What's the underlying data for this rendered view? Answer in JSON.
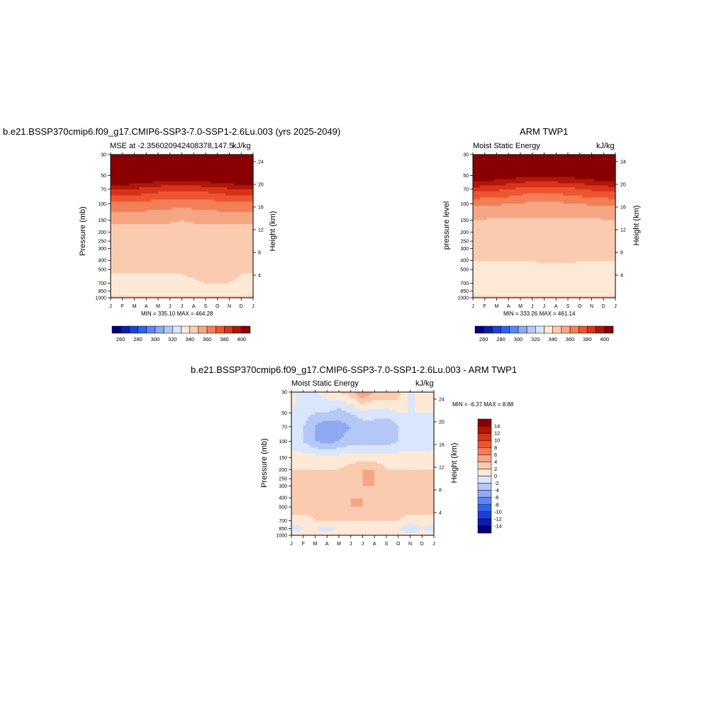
{
  "colors": {
    "mse_colormap": [
      "#00007f",
      "#0a1ea8",
      "#1f3fd6",
      "#2f63e6",
      "#5d86f0",
      "#8fa9f2",
      "#b5c8f5",
      "#d9e6fb",
      "#fde9d6",
      "#fbcbb0",
      "#f7a684",
      "#f37e58",
      "#ed5530",
      "#d8331b",
      "#b11609",
      "#8a0000"
    ],
    "diff_colormap": [
      "#00007f",
      "#0a1ea8",
      "#1f3fd6",
      "#2f63e6",
      "#5d86f0",
      "#8fa9f2",
      "#b5c8f5",
      "#d9e6fb",
      "#fde9d6",
      "#fbcbb0",
      "#f7a684",
      "#f37e58",
      "#ed5530",
      "#d8331b",
      "#b11609",
      "#8a0000"
    ]
  },
  "chart_data": [
    {
      "id": "model",
      "type": "heatmap",
      "title": "b.e21.BSSP370cmip6.f09_g17.CMIP6-SSP3-7.0-SSP1-2.6Lu.003 (yrs 2025-2049)",
      "left_subtitle": "MSE at -2.356020942408378,147.5",
      "right_subtitle": "kJ/kg",
      "ylabel": "Pressure (mb)",
      "ylabel_right": "Height (km)",
      "x_ticks": [
        "J",
        "F",
        "M",
        "A",
        "M",
        "J",
        "J",
        "A",
        "S",
        "O",
        "N",
        "D",
        "J"
      ],
      "y_ticks": [
        "30",
        "50",
        "70",
        "100",
        "150",
        "200",
        "250",
        "300",
        "400",
        "500",
        "700",
        "850",
        "1000"
      ],
      "y_ticks_right": [
        "24",
        "20",
        "16",
        "12",
        "8",
        "4"
      ],
      "stats": "MIN = 335.10 MAX = 464.28",
      "contour_levels": [
        260,
        270,
        280,
        290,
        300,
        310,
        320,
        330,
        340,
        350,
        360,
        370,
        380,
        390,
        400
      ],
      "colorbar_ticks": [
        "260",
        "280",
        "300",
        "320",
        "340",
        "360",
        "380",
        "400"
      ],
      "levels_mb": [
        30,
        50,
        70,
        100,
        150,
        200,
        250,
        300,
        400,
        500,
        700,
        850,
        1000
      ],
      "values": [
        [
          464,
          463,
          462,
          461,
          460,
          459,
          459,
          459,
          460,
          461,
          462,
          463,
          464
        ],
        [
          420,
          419,
          418,
          416,
          414,
          412,
          412,
          413,
          414,
          416,
          418,
          419,
          420
        ],
        [
          392,
          391,
          389,
          387,
          384,
          382,
          382,
          383,
          384,
          386,
          389,
          391,
          392
        ],
        [
          368,
          368,
          367,
          366,
          365,
          364,
          364,
          364,
          365,
          366,
          367,
          368,
          368
        ],
        [
          352,
          352,
          352,
          352,
          351,
          351,
          350,
          351,
          351,
          352,
          352,
          352,
          352
        ],
        [
          347,
          347,
          347,
          347,
          347,
          347,
          347,
          347,
          347,
          347,
          347,
          347,
          347
        ],
        [
          345,
          345,
          345,
          345,
          345,
          345,
          345,
          345,
          345,
          345,
          345,
          345,
          345
        ],
        [
          344,
          344,
          344,
          344,
          344,
          344,
          344,
          344,
          344,
          344,
          344,
          344,
          344
        ],
        [
          342,
          342,
          342,
          342,
          342,
          342,
          342,
          343,
          343,
          343,
          343,
          342,
          342
        ],
        [
          341,
          341,
          341,
          341,
          341,
          341,
          341,
          342,
          342,
          343,
          343,
          341,
          341
        ],
        [
          337,
          337,
          337,
          337,
          337,
          338,
          338,
          339,
          340,
          340,
          340,
          338,
          337
        ],
        [
          336,
          336,
          336,
          337,
          337,
          337,
          336,
          336,
          336,
          336,
          336,
          336,
          336
        ],
        [
          341,
          341,
          341,
          341,
          341,
          341,
          341,
          341,
          341,
          341,
          341,
          341,
          341
        ]
      ]
    },
    {
      "id": "obs",
      "type": "heatmap",
      "title": "ARM TWP1",
      "left_subtitle": "Moist Static Energy",
      "right_subtitle": "kJ/kg",
      "ylabel": "pressure level",
      "ylabel_right": "Height (km)",
      "x_ticks": [
        "J",
        "F",
        "M",
        "A",
        "M",
        "J",
        "J",
        "A",
        "S",
        "O",
        "N",
        "D",
        "J"
      ],
      "y_ticks": [
        "30",
        "50",
        "70",
        "100",
        "150",
        "200",
        "250",
        "300",
        "400",
        "500",
        "700",
        "850",
        "1000"
      ],
      "y_ticks_right": [
        "24",
        "20",
        "16",
        "12",
        "8",
        "4"
      ],
      "stats": "MIN = 333.26 MAX = 461.14",
      "contour_levels": [
        260,
        270,
        280,
        290,
        300,
        310,
        320,
        330,
        340,
        350,
        360,
        370,
        380,
        390,
        400
      ],
      "colorbar_ticks": [
        "260",
        "280",
        "300",
        "320",
        "340",
        "360",
        "380",
        "400"
      ],
      "levels_mb": [
        30,
        50,
        70,
        100,
        150,
        200,
        250,
        300,
        400,
        500,
        700,
        850,
        1000
      ],
      "values": [
        [
          461,
          460,
          459,
          458,
          457,
          456,
          456,
          456,
          457,
          458,
          459,
          460,
          461
        ],
        [
          412,
          411,
          409,
          407,
          404,
          402,
          402,
          403,
          404,
          406,
          409,
          411,
          412
        ],
        [
          385,
          384,
          382,
          380,
          377,
          375,
          375,
          376,
          377,
          379,
          382,
          384,
          385
        ],
        [
          362,
          362,
          361,
          360,
          359,
          358,
          358,
          358,
          359,
          360,
          361,
          362,
          362
        ],
        [
          349,
          349,
          349,
          349,
          349,
          349,
          349,
          349,
          349,
          349,
          349,
          349,
          349
        ],
        [
          346,
          346,
          346,
          346,
          346,
          346,
          346,
          346,
          346,
          346,
          346,
          346,
          346
        ],
        [
          344,
          344,
          344,
          344,
          344,
          344,
          344,
          344,
          344,
          344,
          344,
          344,
          344
        ],
        [
          343,
          343,
          343,
          343,
          343,
          343,
          343,
          343,
          343,
          343,
          343,
          343,
          343
        ],
        [
          340,
          340,
          340,
          340,
          340,
          340,
          341,
          341,
          341,
          340,
          340,
          340,
          340
        ],
        [
          338,
          338,
          338,
          338,
          338,
          338,
          338,
          338,
          338,
          338,
          338,
          338,
          338
        ],
        [
          336,
          336,
          336,
          336,
          336,
          336,
          336,
          336,
          336,
          336,
          336,
          336,
          336
        ],
        [
          337,
          337,
          337,
          336,
          337,
          337,
          337,
          336,
          337,
          337,
          337,
          337,
          337
        ],
        [
          341,
          341,
          341,
          341,
          341,
          341,
          341,
          341,
          341,
          341,
          341,
          341,
          341
        ]
      ]
    },
    {
      "id": "diff",
      "type": "heatmap",
      "title": "b.e21.BSSP370cmip6.f09_g17.CMIP6-SSP3-7.0-SSP1-2.6Lu.003 - ARM TWP1",
      "left_subtitle": "Moist Static Energy",
      "right_subtitle": "kJ/kg",
      "ylabel": "Pressure (mb)",
      "ylabel_right": "Height (km)",
      "x_ticks": [
        "J",
        "F",
        "M",
        "A",
        "M",
        "J",
        "J",
        "A",
        "S",
        "O",
        "N",
        "D",
        "J"
      ],
      "y_ticks": [
        "30",
        "50",
        "70",
        "100",
        "150",
        "200",
        "250",
        "300",
        "400",
        "500",
        "700",
        "850",
        "1000"
      ],
      "y_ticks_right": [
        "24",
        "20",
        "16",
        "12",
        "8",
        "4"
      ],
      "stats": "MIN =  -6.37 MAX =   8.88",
      "contour_levels": [
        -14,
        -12,
        -10,
        -8,
        -6,
        -4,
        -2,
        0,
        2,
        4,
        6,
        8,
        10,
        12,
        14
      ],
      "colorbar_ticks": [
        "14",
        "12",
        "10",
        "8",
        "6",
        "4",
        "2",
        "0",
        "-2",
        "-4",
        "-6",
        "-8",
        "-10",
        "-12",
        "-14"
      ],
      "levels_mb": [
        30,
        50,
        70,
        100,
        150,
        200,
        250,
        300,
        400,
        500,
        700,
        850,
        1000
      ],
      "values": [
        [
          1,
          -1,
          0,
          1,
          2,
          3,
          6,
          4,
          4,
          3,
          -1,
          2,
          1
        ],
        [
          0,
          -1,
          -2,
          -2,
          -3,
          -2,
          -1,
          -1,
          -1,
          0,
          0,
          0,
          0
        ],
        [
          -1,
          -2,
          -4,
          -6,
          -5,
          -4,
          -3,
          -3,
          -4,
          -2,
          -2,
          -2,
          -1
        ],
        [
          -1,
          -2,
          -4,
          -5,
          -4,
          -3,
          -3,
          -3,
          -3,
          -2,
          -2,
          -2,
          -1
        ],
        [
          1,
          1,
          1,
          1,
          1,
          1,
          1,
          1,
          1,
          1,
          1,
          1,
          1
        ],
        [
          2,
          2,
          2,
          2,
          2,
          3,
          4,
          4,
          2,
          2,
          2,
          2,
          2
        ],
        [
          2,
          2,
          2,
          2,
          2,
          3,
          4,
          4,
          2,
          2,
          2,
          2,
          2
        ],
        [
          2,
          2,
          2,
          2,
          2,
          3,
          4,
          4,
          3,
          2,
          2,
          2,
          2
        ],
        [
          2,
          2,
          2,
          3,
          3,
          4,
          4,
          3,
          3,
          3,
          2,
          2,
          2
        ],
        [
          3,
          3,
          3,
          4,
          4,
          4,
          4,
          4,
          4,
          3,
          3,
          3,
          3
        ],
        [
          1,
          1,
          2,
          2,
          2,
          2,
          2,
          2,
          2,
          2,
          1,
          1,
          1
        ],
        [
          -1,
          0,
          0,
          -1,
          0,
          0,
          0,
          0,
          0,
          0,
          -2,
          0,
          -1
        ],
        [
          1,
          1,
          1,
          1,
          2,
          2,
          2,
          1,
          1,
          1,
          1,
          1,
          1
        ]
      ]
    }
  ]
}
